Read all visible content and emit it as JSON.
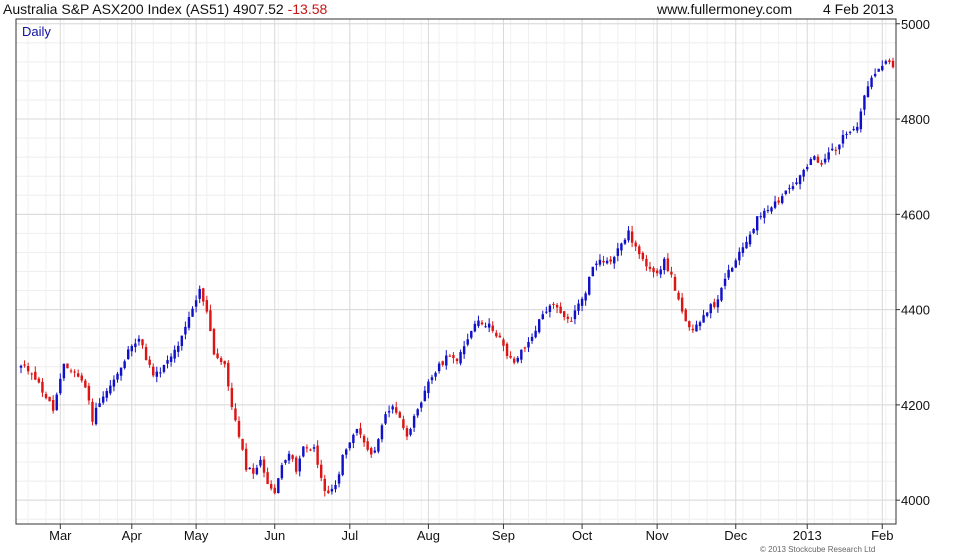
{
  "header": {
    "instrument": "Australia S&P ASX200 Index (AS51)",
    "last": "4907.52",
    "change": "-13.58",
    "site": "www.fullermoney.com",
    "date": "4 Feb 2013"
  },
  "copyright": "© 2013 Stockcube Research Ltd",
  "colors": {
    "up": "#1010c8",
    "down": "#dc1414",
    "grid": "#d8d8d8",
    "frame": "#333333"
  },
  "chart_data": {
    "type": "candlestick",
    "period_label": "Daily",
    "ylim": [
      3950,
      5010
    ],
    "y_ticks": [
      4000,
      4200,
      4400,
      4600,
      4800,
      5000
    ],
    "x_labels": [
      "Mar",
      "Apr",
      "May",
      "Jun",
      "Jul",
      "Aug",
      "Sep",
      "Oct",
      "Nov",
      "Dec",
      "2013",
      "Feb"
    ],
    "x_label_index": [
      11,
      31,
      49,
      71,
      92,
      114,
      135,
      157,
      178,
      200,
      220,
      241
    ],
    "grid": true,
    "x_count": 245,
    "anchors": [
      [
        0,
        4280
      ],
      [
        3,
        4270
      ],
      [
        6,
        4230
      ],
      [
        9,
        4190
      ],
      [
        12,
        4280
      ],
      [
        15,
        4270
      ],
      [
        18,
        4240
      ],
      [
        20,
        4170
      ],
      [
        22,
        4210
      ],
      [
        25,
        4240
      ],
      [
        28,
        4275
      ],
      [
        31,
        4330
      ],
      [
        33,
        4340
      ],
      [
        35,
        4300
      ],
      [
        37,
        4260
      ],
      [
        39,
        4270
      ],
      [
        42,
        4300
      ],
      [
        45,
        4340
      ],
      [
        48,
        4400
      ],
      [
        50,
        4440
      ],
      [
        52,
        4400
      ],
      [
        54,
        4310
      ],
      [
        57,
        4280
      ],
      [
        59,
        4200
      ],
      [
        61,
        4130
      ],
      [
        63,
        4070
      ],
      [
        65,
        4060
      ],
      [
        67,
        4080
      ],
      [
        69,
        4040
      ],
      [
        71,
        4010
      ],
      [
        73,
        4080
      ],
      [
        75,
        4100
      ],
      [
        77,
        4060
      ],
      [
        79,
        4110
      ],
      [
        82,
        4110
      ],
      [
        84,
        4040
      ],
      [
        86,
        4010
      ],
      [
        88,
        4030
      ],
      [
        90,
        4090
      ],
      [
        92,
        4120
      ],
      [
        94,
        4150
      ],
      [
        96,
        4120
      ],
      [
        98,
        4090
      ],
      [
        100,
        4130
      ],
      [
        102,
        4180
      ],
      [
        104,
        4200
      ],
      [
        106,
        4170
      ],
      [
        108,
        4140
      ],
      [
        110,
        4170
      ],
      [
        112,
        4200
      ],
      [
        114,
        4250
      ],
      [
        116,
        4270
      ],
      [
        118,
        4290
      ],
      [
        120,
        4310
      ],
      [
        122,
        4290
      ],
      [
        124,
        4320
      ],
      [
        126,
        4360
      ],
      [
        128,
        4380
      ],
      [
        130,
        4370
      ],
      [
        132,
        4360
      ],
      [
        134,
        4340
      ],
      [
        136,
        4300
      ],
      [
        138,
        4290
      ],
      [
        140,
        4310
      ],
      [
        142,
        4330
      ],
      [
        144,
        4360
      ],
      [
        146,
        4390
      ],
      [
        148,
        4410
      ],
      [
        150,
        4400
      ],
      [
        152,
        4380
      ],
      [
        154,
        4380
      ],
      [
        156,
        4410
      ],
      [
        158,
        4440
      ],
      [
        160,
        4490
      ],
      [
        162,
        4510
      ],
      [
        164,
        4500
      ],
      [
        166,
        4510
      ],
      [
        168,
        4540
      ],
      [
        170,
        4560
      ],
      [
        172,
        4530
      ],
      [
        174,
        4500
      ],
      [
        176,
        4490
      ],
      [
        178,
        4480
      ],
      [
        180,
        4500
      ],
      [
        182,
        4470
      ],
      [
        184,
        4420
      ],
      [
        186,
        4370
      ],
      [
        188,
        4350
      ],
      [
        190,
        4380
      ],
      [
        192,
        4400
      ],
      [
        194,
        4410
      ],
      [
        196,
        4440
      ],
      [
        198,
        4480
      ],
      [
        200,
        4500
      ],
      [
        202,
        4530
      ],
      [
        204,
        4560
      ],
      [
        206,
        4590
      ],
      [
        208,
        4610
      ],
      [
        210,
        4620
      ],
      [
        212,
        4630
      ],
      [
        214,
        4650
      ],
      [
        216,
        4660
      ],
      [
        218,
        4680
      ],
      [
        220,
        4700
      ],
      [
        222,
        4720
      ],
      [
        224,
        4700
      ],
      [
        226,
        4730
      ],
      [
        228,
        4740
      ],
      [
        230,
        4760
      ],
      [
        232,
        4780
      ],
      [
        234,
        4790
      ],
      [
        236,
        4850
      ],
      [
        238,
        4890
      ],
      [
        240,
        4900
      ],
      [
        242,
        4920
      ],
      [
        244,
        4907
      ]
    ]
  }
}
